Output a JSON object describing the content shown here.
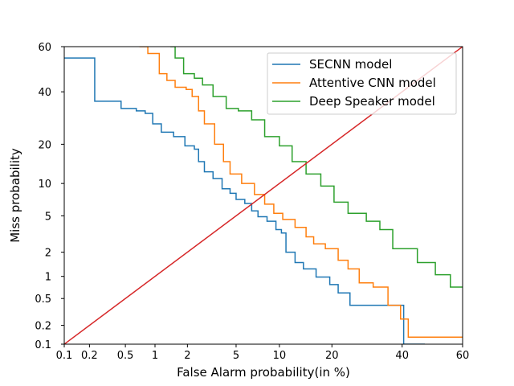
{
  "chart_data": {
    "type": "line",
    "title": "",
    "xlabel": "False Alarm probability(in %)",
    "ylabel": "Miss probability",
    "x_scale": "probit",
    "y_scale": "probit",
    "xlim": [
      0.1,
      60
    ],
    "ylim": [
      0.1,
      60
    ],
    "x_ticks": [
      0.1,
      0.2,
      0.5,
      1,
      2,
      5,
      10,
      20,
      40,
      60
    ],
    "x_tick_labels": [
      "0.1",
      "0.2",
      "0.5",
      "1",
      "2",
      "5",
      "10",
      "20",
      "40",
      "60"
    ],
    "y_ticks": [
      0.1,
      0.2,
      0.5,
      1,
      2,
      5,
      10,
      20,
      40,
      60
    ],
    "y_tick_labels": [
      "0.1",
      "0.2",
      "0.5",
      "1",
      "2",
      "5",
      "10",
      "20",
      "40",
      "60"
    ],
    "grid": false,
    "legend_position": "upper-right",
    "series": [
      {
        "name": "SECNN model",
        "color": "#1f77b4",
        "step": true,
        "points": [
          [
            0.1,
            55
          ],
          [
            0.23,
            55
          ],
          [
            0.23,
            36
          ],
          [
            0.45,
            36
          ],
          [
            0.45,
            33
          ],
          [
            0.65,
            33
          ],
          [
            0.65,
            32
          ],
          [
            0.8,
            32
          ],
          [
            0.8,
            31
          ],
          [
            0.95,
            31
          ],
          [
            0.95,
            27
          ],
          [
            1.15,
            27
          ],
          [
            1.15,
            24
          ],
          [
            1.5,
            24
          ],
          [
            1.5,
            22.5
          ],
          [
            1.9,
            22.5
          ],
          [
            1.9,
            19.5
          ],
          [
            2.3,
            19.5
          ],
          [
            2.3,
            18.5
          ],
          [
            2.5,
            18.5
          ],
          [
            2.5,
            15
          ],
          [
            2.8,
            15
          ],
          [
            2.8,
            12.5
          ],
          [
            3.3,
            12.5
          ],
          [
            3.3,
            11
          ],
          [
            3.9,
            11
          ],
          [
            3.9,
            9
          ],
          [
            4.5,
            9
          ],
          [
            4.5,
            8.2
          ],
          [
            5.0,
            8.2
          ],
          [
            5.0,
            7.2
          ],
          [
            5.8,
            7.2
          ],
          [
            5.8,
            6.6
          ],
          [
            6.5,
            6.6
          ],
          [
            6.5,
            5.6
          ],
          [
            7.2,
            5.6
          ],
          [
            7.2,
            4.9
          ],
          [
            8.3,
            4.9
          ],
          [
            8.3,
            4.4
          ],
          [
            9.5,
            4.4
          ],
          [
            9.5,
            3.6
          ],
          [
            10.3,
            3.6
          ],
          [
            10.3,
            3.3
          ],
          [
            11.0,
            3.3
          ],
          [
            11.0,
            2.0
          ],
          [
            12.5,
            2.0
          ],
          [
            12.5,
            1.5
          ],
          [
            14.0,
            1.5
          ],
          [
            14.0,
            1.25
          ],
          [
            16.5,
            1.25
          ],
          [
            16.5,
            0.98
          ],
          [
            19.5,
            0.98
          ],
          [
            19.5,
            0.78
          ],
          [
            21.5,
            0.78
          ],
          [
            21.5,
            0.6
          ],
          [
            24.5,
            0.6
          ],
          [
            24.5,
            0.4
          ],
          [
            35.0,
            0.4
          ],
          [
            35.0,
            0.4
          ],
          [
            40.5,
            0.4
          ],
          [
            40.5,
            0.1
          ],
          [
            47.5,
            0.1
          ]
        ]
      },
      {
        "name": "Attentive CNN model",
        "color": "#ff7f0e",
        "step": true,
        "points": [
          [
            0.7,
            60
          ],
          [
            0.85,
            60
          ],
          [
            0.85,
            57
          ],
          [
            1.1,
            57
          ],
          [
            1.1,
            48
          ],
          [
            1.3,
            48
          ],
          [
            1.3,
            45
          ],
          [
            1.55,
            45
          ],
          [
            1.55,
            42
          ],
          [
            1.95,
            42
          ],
          [
            1.95,
            41
          ],
          [
            2.2,
            41
          ],
          [
            2.2,
            38
          ],
          [
            2.5,
            38
          ],
          [
            2.5,
            32
          ],
          [
            2.8,
            32
          ],
          [
            2.8,
            27
          ],
          [
            3.4,
            27
          ],
          [
            3.4,
            20
          ],
          [
            4.0,
            20
          ],
          [
            4.0,
            15
          ],
          [
            4.5,
            15
          ],
          [
            4.5,
            12
          ],
          [
            5.5,
            12
          ],
          [
            5.5,
            10
          ],
          [
            6.8,
            10
          ],
          [
            6.8,
            8
          ],
          [
            8.0,
            8
          ],
          [
            8.0,
            6.5
          ],
          [
            9.2,
            6.5
          ],
          [
            9.2,
            5.3
          ],
          [
            10.5,
            5.3
          ],
          [
            10.5,
            4.6
          ],
          [
            12.5,
            4.6
          ],
          [
            12.5,
            3.8
          ],
          [
            14.5,
            3.8
          ],
          [
            14.5,
            3.0
          ],
          [
            16.0,
            3.0
          ],
          [
            16.0,
            2.5
          ],
          [
            18.5,
            2.5
          ],
          [
            18.5,
            2.2
          ],
          [
            21.5,
            2.2
          ],
          [
            21.5,
            1.6
          ],
          [
            24.0,
            1.6
          ],
          [
            24.0,
            1.25
          ],
          [
            27.0,
            1.25
          ],
          [
            27.0,
            0.82
          ],
          [
            31.0,
            0.82
          ],
          [
            31.0,
            0.72
          ],
          [
            35.5,
            0.72
          ],
          [
            35.5,
            0.4
          ],
          [
            39.5,
            0.4
          ],
          [
            39.5,
            0.25
          ],
          [
            42.0,
            0.25
          ],
          [
            42.0,
            0.13
          ],
          [
            60,
            0.13
          ]
        ]
      },
      {
        "name": "Deep Speaker model",
        "color": "#2ca02c",
        "step": true,
        "points": [
          [
            1.4,
            60
          ],
          [
            1.55,
            60
          ],
          [
            1.55,
            55
          ],
          [
            1.85,
            55
          ],
          [
            1.85,
            48
          ],
          [
            2.3,
            48
          ],
          [
            2.3,
            46
          ],
          [
            2.7,
            46
          ],
          [
            2.7,
            43
          ],
          [
            3.3,
            43
          ],
          [
            3.3,
            38
          ],
          [
            4.2,
            38
          ],
          [
            4.2,
            33
          ],
          [
            5.2,
            33
          ],
          [
            5.2,
            32
          ],
          [
            6.5,
            32
          ],
          [
            6.5,
            28.5
          ],
          [
            8.0,
            28.5
          ],
          [
            8.0,
            22.5
          ],
          [
            10.0,
            22.5
          ],
          [
            10.0,
            19.5
          ],
          [
            12.0,
            19.5
          ],
          [
            12.0,
            15
          ],
          [
            14.5,
            15
          ],
          [
            14.5,
            12
          ],
          [
            17.5,
            12
          ],
          [
            17.5,
            9.5
          ],
          [
            20.5,
            9.5
          ],
          [
            20.5,
            6.8
          ],
          [
            24.0,
            6.8
          ],
          [
            24.0,
            5.3
          ],
          [
            29.0,
            5.3
          ],
          [
            29.0,
            4.4
          ],
          [
            33.0,
            4.4
          ],
          [
            33.0,
            3.6
          ],
          [
            37.0,
            3.6
          ],
          [
            37.0,
            2.2
          ],
          [
            45.0,
            2.2
          ],
          [
            45.0,
            1.5
          ],
          [
            51.0,
            1.5
          ],
          [
            51.0,
            1.05
          ],
          [
            56.0,
            1.05
          ],
          [
            56.0,
            0.72
          ],
          [
            60,
            0.72
          ]
        ]
      },
      {
        "name": "",
        "color": "#d62728",
        "step": false,
        "points": [
          [
            0.1,
            0.1
          ],
          [
            60,
            60
          ]
        ]
      }
    ]
  }
}
